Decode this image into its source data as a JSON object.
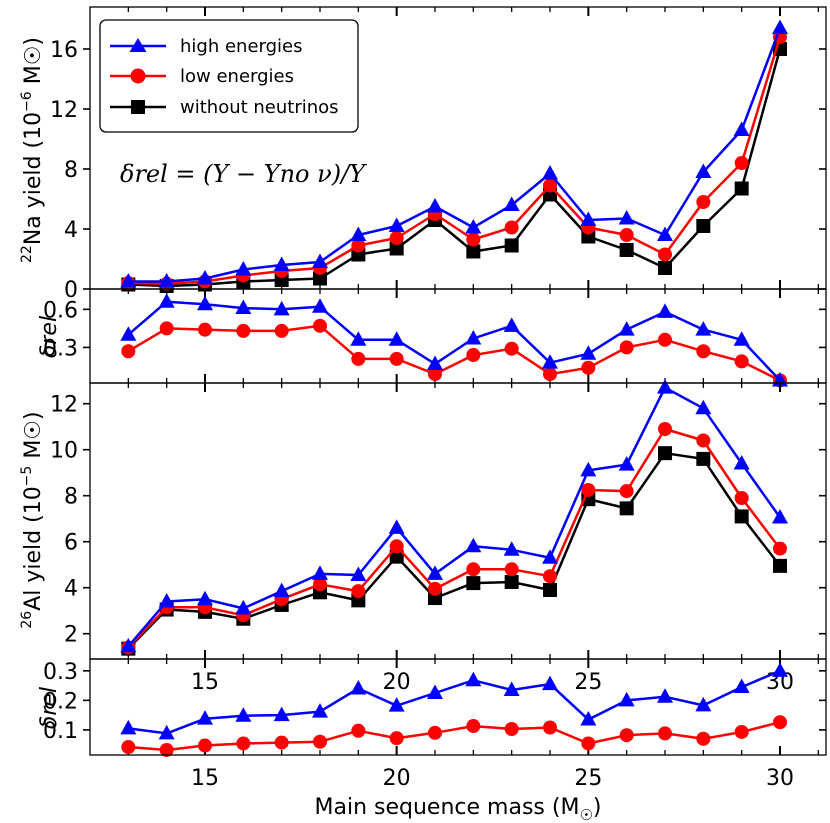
{
  "chart_data": [
    {
      "type": "line",
      "panel": "na22-yield",
      "ylabel": "22Na yield (10^-6 M☉)",
      "ylabel_parts": {
        "sup": "22",
        "main": "Na yield (10",
        "exp": "−6",
        "unit": " M☉)"
      },
      "ylim": [
        0,
        18.8
      ],
      "yticks": [
        0,
        4,
        8,
        12,
        16
      ],
      "xlim": [
        12,
        31.2
      ],
      "annotation": "δrel = (Y − Yno ν)/Y",
      "legend": {
        "position": "top-left",
        "entries": [
          {
            "label": "high energies",
            "color": "#0000ff",
            "marker": "triangle"
          },
          {
            "label": "low energies",
            "color": "#ff0000",
            "marker": "circle"
          },
          {
            "label": "without neutrinos",
            "color": "#000000",
            "marker": "square"
          }
        ]
      },
      "x": [
        13,
        14,
        15,
        16,
        17,
        18,
        19,
        20,
        21,
        22,
        23,
        24,
        25,
        26,
        27,
        28,
        29,
        30
      ],
      "series": [
        {
          "name": "high energies",
          "color": "#0000ff",
          "marker": "triangle",
          "values": [
            0.5,
            0.5,
            0.7,
            1.3,
            1.6,
            1.8,
            3.6,
            4.2,
            5.5,
            4.1,
            5.6,
            7.7,
            4.6,
            4.7,
            3.6,
            7.8,
            10.6,
            17.4
          ]
        },
        {
          "name": "low energies",
          "color": "#ff0000",
          "marker": "circle",
          "values": [
            0.4,
            0.35,
            0.5,
            0.9,
            1.2,
            1.4,
            2.9,
            3.4,
            5.0,
            3.3,
            4.1,
            6.9,
            4.1,
            3.6,
            2.3,
            5.8,
            8.4,
            16.8
          ]
        },
        {
          "name": "without neutrinos",
          "color": "#000000",
          "marker": "square",
          "values": [
            0.3,
            0.2,
            0.3,
            0.5,
            0.6,
            0.7,
            2.3,
            2.7,
            4.6,
            2.5,
            2.9,
            6.3,
            3.5,
            2.6,
            1.4,
            4.2,
            6.7,
            16.0
          ]
        }
      ]
    },
    {
      "type": "line",
      "panel": "na22-delta",
      "ylabel": "δrel",
      "ylim": [
        0.02,
        0.76
      ],
      "yticks": [
        0.3,
        0.6
      ],
      "ytick_labels": [
        "0.3",
        "0.6"
      ],
      "xlim": [
        12,
        31.2
      ],
      "x": [
        13,
        14,
        15,
        16,
        17,
        18,
        19,
        20,
        21,
        22,
        23,
        24,
        25,
        26,
        27,
        28,
        29,
        30
      ],
      "series": [
        {
          "name": "high energies",
          "color": "#0000ff",
          "marker": "triangle",
          "values": [
            0.4,
            0.66,
            0.64,
            0.61,
            0.6,
            0.62,
            0.36,
            0.36,
            0.17,
            0.37,
            0.47,
            0.18,
            0.25,
            0.44,
            0.58,
            0.44,
            0.36,
            0.04
          ]
        },
        {
          "name": "low energies",
          "color": "#ff0000",
          "marker": "circle",
          "values": [
            0.27,
            0.45,
            0.44,
            0.43,
            0.43,
            0.47,
            0.21,
            0.21,
            0.09,
            0.24,
            0.29,
            0.09,
            0.14,
            0.3,
            0.36,
            0.27,
            0.19,
            0.04
          ]
        }
      ]
    },
    {
      "type": "line",
      "panel": "al26-yield",
      "ylabel": "26Al yield (10^-5 M☉)",
      "ylabel_parts": {
        "sup": "26",
        "main": "Al yield (10",
        "exp": "−5",
        "unit": " M☉)"
      },
      "ylim": [
        0.9,
        12.9
      ],
      "yticks": [
        2,
        4,
        6,
        8,
        10,
        12
      ],
      "xlim": [
        12,
        31.2
      ],
      "xticks": [
        15,
        20,
        25,
        30
      ],
      "xtick_labels": [
        "15",
        "20",
        "25",
        "30"
      ],
      "x": [
        13,
        14,
        15,
        16,
        17,
        18,
        19,
        20,
        21,
        22,
        23,
        24,
        25,
        26,
        27,
        28,
        29,
        30
      ],
      "series": [
        {
          "name": "high energies",
          "color": "#0000ff",
          "marker": "triangle",
          "values": [
            1.45,
            3.4,
            3.5,
            3.1,
            3.85,
            4.6,
            4.55,
            6.6,
            4.6,
            5.8,
            5.65,
            5.3,
            9.1,
            9.35,
            12.7,
            11.8,
            9.4,
            7.05
          ]
        },
        {
          "name": "low energies",
          "color": "#ff0000",
          "marker": "circle",
          "values": [
            1.4,
            3.15,
            3.15,
            2.8,
            3.5,
            4.15,
            3.85,
            5.8,
            3.95,
            4.8,
            4.8,
            4.5,
            8.25,
            8.2,
            10.9,
            10.4,
            7.9,
            5.7
          ]
        },
        {
          "name": "without neutrinos",
          "color": "#000000",
          "marker": "square",
          "values": [
            1.35,
            3.05,
            2.95,
            2.65,
            3.25,
            3.8,
            3.45,
            5.35,
            3.55,
            4.2,
            4.25,
            3.9,
            7.85,
            7.45,
            9.85,
            9.6,
            7.1,
            4.95
          ]
        }
      ]
    },
    {
      "type": "line",
      "panel": "al26-delta",
      "ylabel": "δrel",
      "xlabel": "Main sequence mass (M☉)",
      "xlabel_parts": {
        "main": "Main sequence mass (M",
        "sub": "☉",
        "close": ")"
      },
      "ylim": [
        0.015,
        0.34
      ],
      "yticks": [
        0.1,
        0.2,
        0.3
      ],
      "ytick_labels": [
        "0.1",
        "0.2",
        "0.3"
      ],
      "xlim": [
        12,
        31.2
      ],
      "xticks": [
        15,
        20,
        25,
        30
      ],
      "xtick_labels": [
        "15",
        "20",
        "25",
        "30"
      ],
      "x": [
        13,
        14,
        15,
        16,
        17,
        18,
        19,
        20,
        21,
        22,
        23,
        24,
        25,
        26,
        27,
        28,
        29,
        30
      ],
      "series": [
        {
          "name": "high energies",
          "color": "#0000ff",
          "marker": "triangle",
          "values": [
            0.105,
            0.088,
            0.138,
            0.148,
            0.15,
            0.162,
            0.24,
            0.182,
            0.225,
            0.268,
            0.235,
            0.255,
            0.135,
            0.2,
            0.212,
            0.183,
            0.245,
            0.3
          ]
        },
        {
          "name": "low energies",
          "color": "#ff0000",
          "marker": "circle",
          "values": [
            0.042,
            0.032,
            0.047,
            0.054,
            0.057,
            0.06,
            0.097,
            0.072,
            0.09,
            0.113,
            0.103,
            0.108,
            0.054,
            0.082,
            0.088,
            0.07,
            0.093,
            0.126
          ]
        }
      ]
    }
  ]
}
